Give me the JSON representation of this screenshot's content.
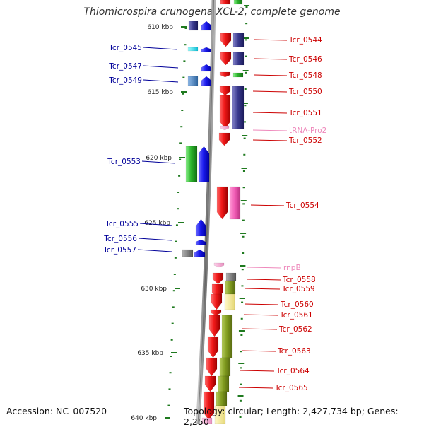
{
  "title": "Thiomicrospira crunogena XCL-2, complete genome",
  "footer": {
    "accession": "Accession: NC_007520",
    "topology": "Topology: circular; Length: 2,427,734 bp; Genes: 2,250"
  },
  "colors": {
    "red": "#f01818",
    "blue": "#1a1aee",
    "navy": "#38388c",
    "green": "#2db52d",
    "olive": "#7f9a1e",
    "cyan": "#22e0f0",
    "steel": "#4f86c0",
    "grey": "#777777",
    "pink": "#f05ab4",
    "light_pink": "#f0a0d0",
    "pale_yellow": "#f4eb9a",
    "label_red": "#cc0000",
    "label_blue": "#000099",
    "label_pink": "#ee88bb",
    "tick_green": "#227722"
  },
  "scale": {
    "kbp_labels": [
      "610 kbp",
      "615 kbp",
      "620 kbp",
      "625 kbp",
      "630 kbp",
      "635 kbp",
      "640 kbp"
    ]
  },
  "genes_right": [
    {
      "label": "Tcr_0544",
      "type": "cds"
    },
    {
      "label": "Tcr_0546",
      "type": "cds"
    },
    {
      "label": "Tcr_0548",
      "type": "cds"
    },
    {
      "label": "Tcr_0550",
      "type": "cds"
    },
    {
      "label": "Tcr_0551",
      "type": "cds"
    },
    {
      "label": "tRNA-Pro2",
      "type": "rna"
    },
    {
      "label": "Tcr_0552",
      "type": "cds"
    },
    {
      "label": "Tcr_0554",
      "type": "cds"
    },
    {
      "label": "rnpB",
      "type": "rna"
    },
    {
      "label": "Tcr_0558",
      "type": "cds"
    },
    {
      "label": "Tcr_0559",
      "type": "cds"
    },
    {
      "label": "Tcr_0560",
      "type": "cds"
    },
    {
      "label": "Tcr_0561",
      "type": "cds"
    },
    {
      "label": "Tcr_0562",
      "type": "cds"
    },
    {
      "label": "Tcr_0563",
      "type": "cds"
    },
    {
      "label": "Tcr_0564",
      "type": "cds"
    },
    {
      "label": "Tcr_0565",
      "type": "cds"
    }
  ],
  "genes_left": [
    {
      "label": "Tcr_0545"
    },
    {
      "label": "Tcr_0547"
    },
    {
      "label": "Tcr_0549"
    },
    {
      "label": "Tcr_0553"
    },
    {
      "label": "Tcr_0555"
    },
    {
      "label": "Tcr_0556"
    },
    {
      "label": "Tcr_0557"
    }
  ]
}
